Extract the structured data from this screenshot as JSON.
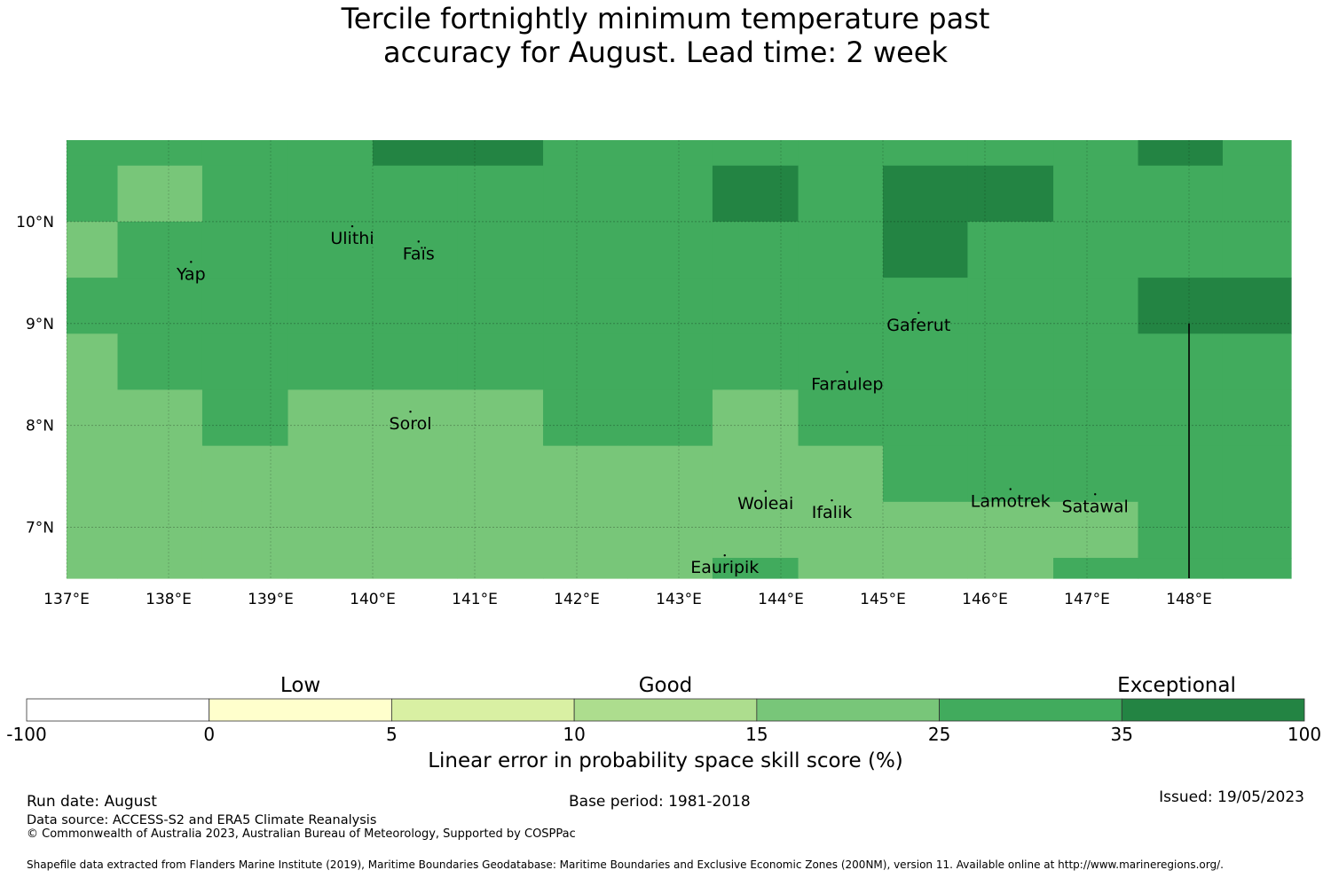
{
  "title": {
    "line1": "Tercile fortnightly minimum temperature past",
    "line2": "accuracy for August. Lead time: 2 week"
  },
  "map": {
    "lon_range": [
      137.0,
      149.0
    ],
    "lat_range": [
      6.5,
      10.8
    ],
    "lon_ticks": [
      137,
      138,
      139,
      140,
      141,
      142,
      143,
      144,
      145,
      146,
      147,
      148
    ],
    "lon_tick_labels": [
      "137°E",
      "138°E",
      "139°E",
      "140°E",
      "141°E",
      "142°E",
      "143°E",
      "144°E",
      "145°E",
      "146°E",
      "147°E",
      "148°E"
    ],
    "lat_ticks": [
      7,
      8,
      9,
      10
    ],
    "lat_tick_labels": [
      "7°N",
      "8°N",
      "9°N",
      "10°N"
    ],
    "grid_lines": true,
    "category_colors": {
      "3": "#ffffcc",
      "4": "#d9f0a3",
      "5": "#addd8e",
      "6": "#78c679",
      "7": "#41ab5d",
      "8": "#238443"
    },
    "skill_grid": {
      "lon_edges": [
        137.0,
        137.5,
        138.33,
        139.17,
        140.0,
        140.83,
        141.67,
        142.5,
        143.33,
        144.17,
        145.0,
        145.83,
        146.67,
        147.5,
        148.33,
        149.0
      ],
      "lat_edges": [
        10.8,
        10.55,
        10.0,
        9.45,
        8.9,
        8.35,
        7.8,
        7.25,
        6.7,
        6.5
      ],
      "cells": [
        [
          7,
          7,
          7,
          7,
          8,
          8,
          7,
          7,
          7,
          7,
          7,
          7,
          7,
          8,
          7
        ],
        [
          7,
          6,
          7,
          7,
          7,
          7,
          7,
          7,
          8,
          7,
          8,
          8,
          7,
          7,
          7
        ],
        [
          6,
          7,
          7,
          7,
          7,
          7,
          7,
          7,
          7,
          7,
          8,
          7,
          7,
          7,
          7
        ],
        [
          7,
          7,
          7,
          7,
          7,
          7,
          7,
          7,
          7,
          7,
          7,
          7,
          7,
          8,
          8
        ],
        [
          6,
          7,
          7,
          7,
          7,
          7,
          7,
          7,
          7,
          7,
          7,
          7,
          7,
          7,
          7
        ],
        [
          6,
          6,
          7,
          6,
          6,
          6,
          7,
          7,
          6,
          7,
          7,
          7,
          7,
          7,
          7
        ],
        [
          6,
          6,
          6,
          6,
          6,
          6,
          6,
          6,
          6,
          6,
          7,
          7,
          7,
          7,
          7
        ],
        [
          6,
          6,
          6,
          6,
          6,
          6,
          6,
          6,
          6,
          6,
          6,
          6,
          6,
          7,
          7
        ],
        [
          6,
          6,
          6,
          6,
          6,
          6,
          6,
          6,
          7,
          6,
          6,
          6,
          7,
          7,
          7
        ]
      ]
    },
    "places": [
      {
        "name": "Ulithi",
        "lon": 139.8,
        "lat": 9.85
      },
      {
        "name": "Faïs",
        "lon": 140.45,
        "lat": 9.7
      },
      {
        "name": "Yap",
        "lon": 138.22,
        "lat": 9.5
      },
      {
        "name": "Gaferut",
        "lon": 145.35,
        "lat": 9.0
      },
      {
        "name": "Faraulep",
        "lon": 144.65,
        "lat": 8.42
      },
      {
        "name": "Sorol",
        "lon": 140.37,
        "lat": 8.03
      },
      {
        "name": "Woleai",
        "lon": 143.85,
        "lat": 7.25
      },
      {
        "name": "Ifalik",
        "lon": 144.5,
        "lat": 7.16
      },
      {
        "name": "Lamotrek",
        "lon": 146.25,
        "lat": 7.27
      },
      {
        "name": "Satawal",
        "lon": 147.08,
        "lat": 7.22
      },
      {
        "name": "Eauripik",
        "lon": 143.45,
        "lat": 6.62
      }
    ],
    "boundary_line": {
      "lon": 148.0,
      "lat_from": 6.5,
      "lat_to": 9.0
    }
  },
  "colorbar": {
    "group_labels": [
      {
        "text": "Low",
        "at_bin": 1.5
      },
      {
        "text": "Good",
        "at_bin": 3.5
      },
      {
        "text": "Exceptional",
        "at_bin": 6.3
      }
    ],
    "boundaries": [
      "-100",
      "0",
      "5",
      "10",
      "15",
      "25",
      "35",
      "100"
    ],
    "colors": [
      "#ffffff",
      "#ffffcc",
      "#d9f0a3",
      "#addd8e",
      "#78c679",
      "#41ab5d",
      "#238443"
    ],
    "title": "Linear error in probability space skill score (%)"
  },
  "footer": {
    "run_date": "Run date: August",
    "base_period": "Base period: 1981-2018",
    "issued": "Issued: 19/05/2023",
    "data_source": "Data source: ACCESS-S2 and ERA5 Climate Reanalysis",
    "copyright": "© Commonwealth of Australia 2023, Australian Bureau of Meteorology, Supported by COSPPac",
    "shapefile": "Shapefile data extracted from Flanders Marine Institute (2019), Maritime Boundaries Geodatabase: Maritime Boundaries and Exclusive Economic Zones (200NM), version 11. Available online at http://www.marineregions.org/."
  }
}
